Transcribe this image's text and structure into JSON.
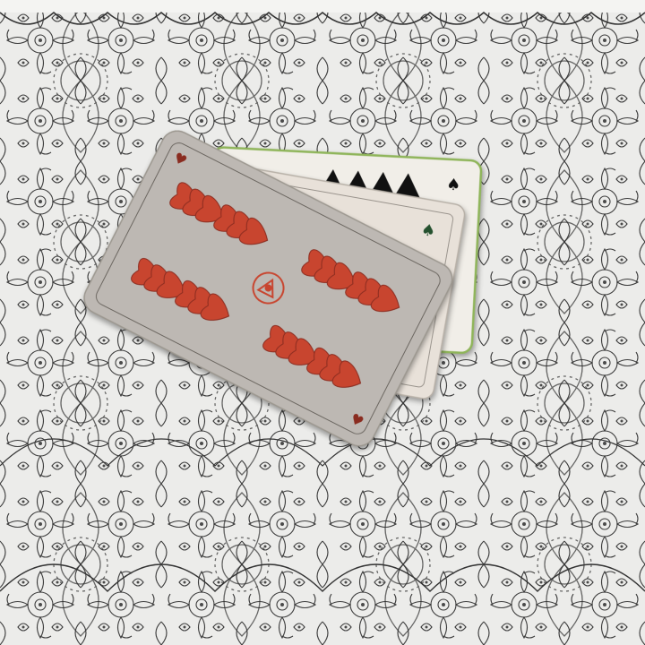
{
  "table": {
    "cloth_color": "#e9e9e7",
    "ink_color": "#3a3a3a"
  },
  "cards": [
    {
      "position": "back",
      "suit": "leaves",
      "suit_symbol": "♠",
      "face": "card-back-of-stack",
      "body_color": "#f1eee8",
      "edge_color": "#8fb55a",
      "pip_color": "#111111"
    },
    {
      "position": "middle",
      "suit": "leaves",
      "suit_symbol": "♠",
      "face": "leaves-card",
      "body_color": "#e8e1d9",
      "pip_color": "#3f7a4a"
    },
    {
      "position": "front",
      "suit": "hearts",
      "suit_symbol": "♥",
      "rank": "8",
      "pip_count": 8,
      "body_color": "#bdb8b3",
      "pip_color": "#c8452f",
      "pip_shadow": "#8a2c20",
      "emblem_color": "#c8452f"
    }
  ]
}
